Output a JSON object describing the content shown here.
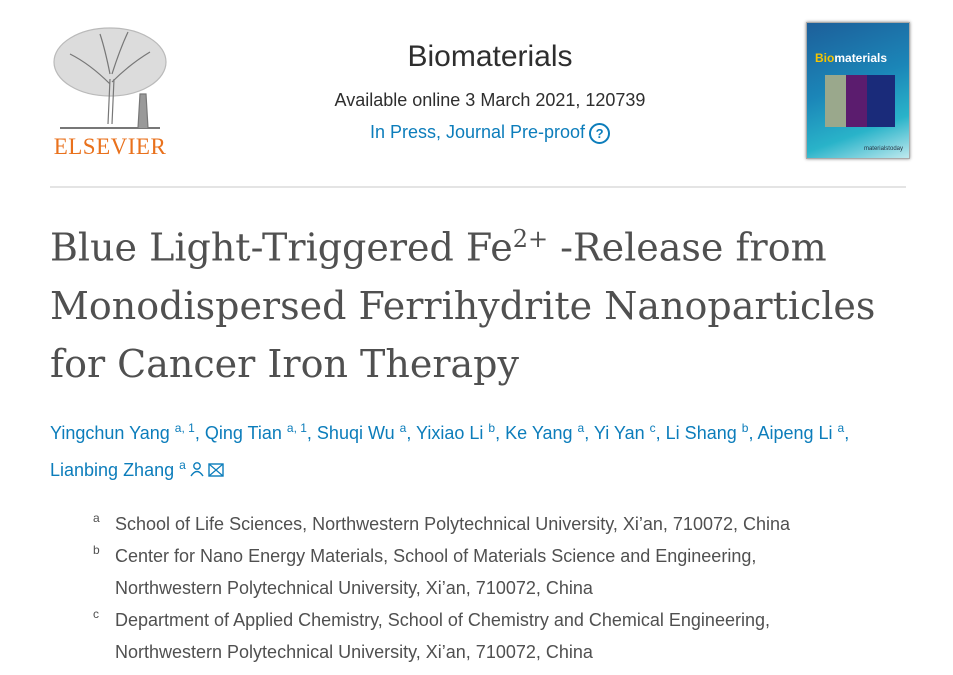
{
  "publisher": {
    "logo_text": "ELSEVIER",
    "logo_color": "#e9711c"
  },
  "journal": {
    "name": "Biomaterials",
    "availability": "Available online 3 March 2021, 120739",
    "status_link": "In Press, Journal Pre-proof",
    "help_icon": "question-circle-icon",
    "cover_title_prefix": "Bio",
    "cover_title_rest": "materials",
    "cover_footer": "materialstoday"
  },
  "article": {
    "title_part1": "Blue Light-Triggered Fe",
    "title_sup": "2+",
    "title_part2": " -Release from",
    "title_line2": "Monodispersed Ferrihydrite Nanoparticles",
    "title_line3": "for Cancer Iron Therapy"
  },
  "authors": [
    {
      "name": "Yingchun Yang",
      "sup": "a, 1",
      "sep": ", "
    },
    {
      "name": "Qing Tian",
      "sup": "a, 1",
      "sep": ", "
    },
    {
      "name": "Shuqi Wu",
      "sup": "a",
      "sep": ", "
    },
    {
      "name": "Yixiao Li",
      "sup": "b",
      "sep": ", "
    },
    {
      "name": "Ke Yang",
      "sup": "a",
      "sep": ", "
    },
    {
      "name": "Yi Yan",
      "sup": "c",
      "sep": ", "
    },
    {
      "name": "Li Shang",
      "sup": "b",
      "sep": ", "
    },
    {
      "name": "Aipeng Li",
      "sup": "a",
      "sep": ","
    },
    {
      "name": "Lianbing Zhang",
      "sup": "a",
      "sep": ""
    }
  ],
  "affiliations": [
    {
      "label": "a",
      "lines": [
        "School of Life Sciences, Northwestern Polytechnical University, Xi’an, 710072, China"
      ]
    },
    {
      "label": "b",
      "lines": [
        "Center for Nano Energy Materials, School of Materials Science and Engineering,",
        "Northwestern Polytechnical University, Xi’an, 710072, China"
      ]
    },
    {
      "label": "c",
      "lines": [
        "Department of Applied Chemistry, School of Chemistry and Chemical Engineering,",
        "Northwestern Polytechnical University, Xi’an, 710072, China"
      ]
    }
  ],
  "colors": {
    "link": "#0c7dbb",
    "text": "#505050"
  }
}
